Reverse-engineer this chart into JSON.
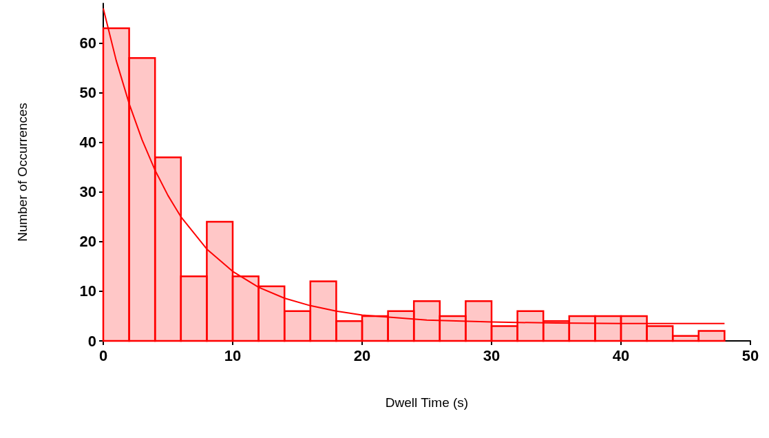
{
  "chart_data": {
    "type": "histogram",
    "xlabel": "Dwell Time (s)",
    "ylabel": "Number of Occurrences",
    "bins": [
      0,
      2,
      4,
      6,
      8,
      10,
      12,
      14,
      16,
      18,
      20,
      22,
      24,
      26,
      28,
      30,
      32,
      34,
      36,
      38,
      40,
      42,
      44,
      46,
      48
    ],
    "series": [
      {
        "color": "#ff0000",
        "values": [
          63,
          57,
          37,
          13,
          24,
          13,
          11,
          6,
          12,
          4,
          5,
          6,
          8,
          5,
          8,
          3,
          6,
          4,
          5,
          5,
          5,
          3,
          1,
          2
        ]
      },
      {
        "type": "line",
        "color": "#ff0000",
        "x": [
          0,
          1,
          2,
          3,
          4,
          5,
          6,
          8,
          10,
          12,
          14,
          16,
          18,
          20,
          25,
          30,
          35,
          40,
          48
        ],
        "values": [
          67,
          56.5,
          47.8,
          40.5,
          34.4,
          29.3,
          25,
          18.5,
          14,
          10.8,
          8.6,
          7.1,
          6,
          5.2,
          4.2,
          3.8,
          3.6,
          3.5,
          3.5
        ]
      }
    ],
    "xlim": [
      0,
      50
    ],
    "xticks": [
      0,
      10,
      20,
      30,
      40,
      50
    ],
    "ylim": [
      0,
      68
    ],
    "yticks": [
      0,
      10,
      20,
      30,
      40,
      50,
      60
    ],
    "grid": false,
    "marker": "none"
  }
}
